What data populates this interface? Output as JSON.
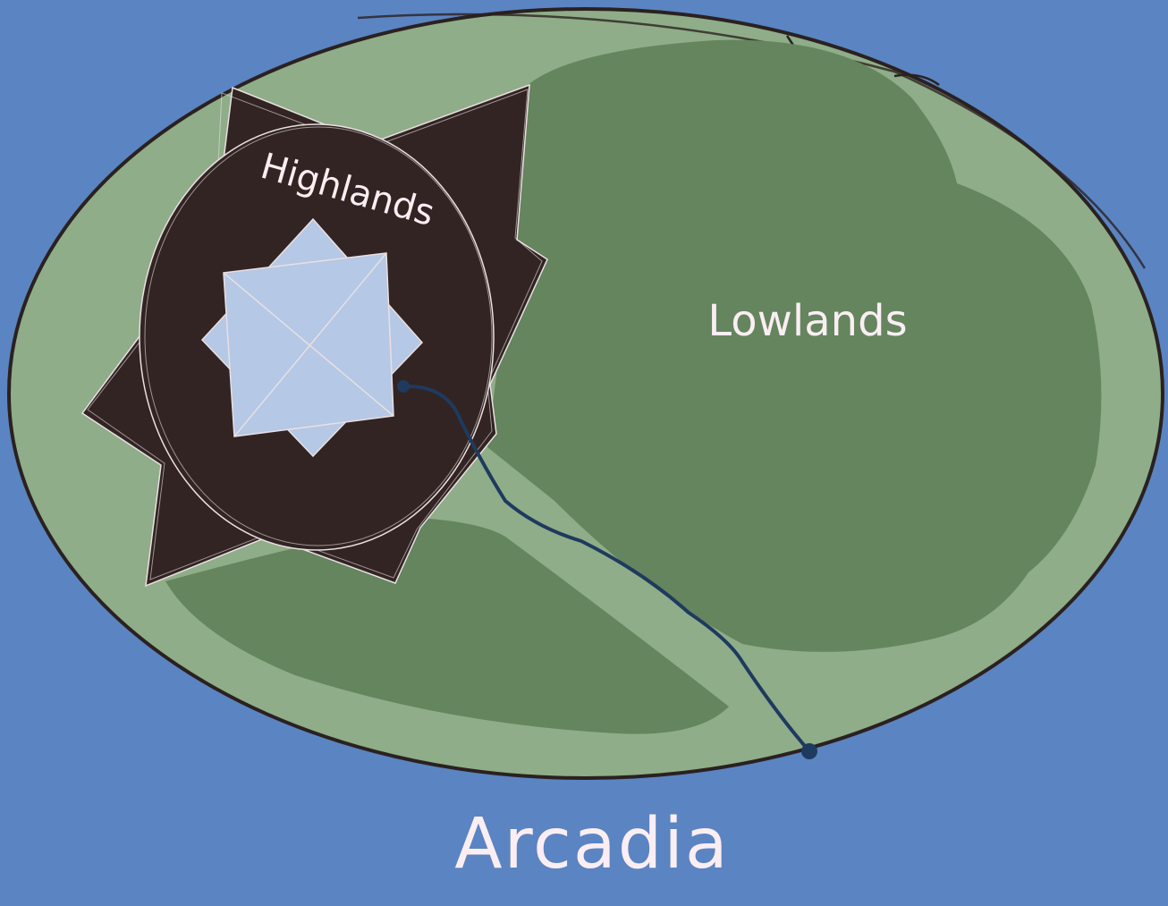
{
  "map": {
    "title": "Arcadia",
    "regions": {
      "highlands": "Highlands",
      "lowlands": "Lowlands"
    },
    "colors": {
      "sea": "#5b84c2",
      "island": "#8fad88",
      "lowland": "#64855e",
      "highland": "#312422",
      "peak": "#b5c8e5",
      "river": "#1f3a5f",
      "outline": "#2a2120",
      "text": "#fbeef3"
    }
  }
}
